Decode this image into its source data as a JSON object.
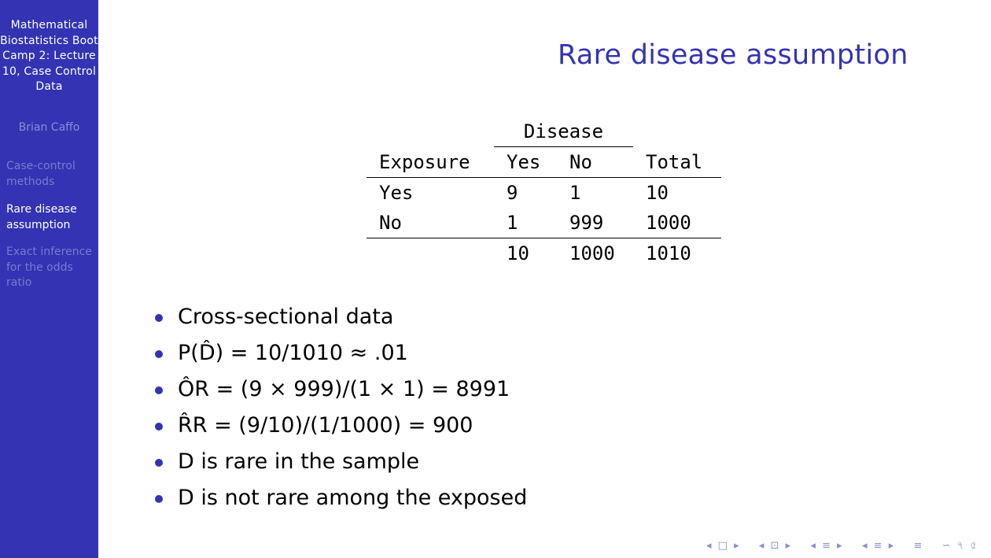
{
  "sidebar": {
    "title": "Mathematical Biostatistics Boot Camp 2: Lecture 10, Case Control Data",
    "author": "Brian Caffo",
    "sections": [
      {
        "label": "Case-control methods",
        "active": false
      },
      {
        "label": "Rare disease assumption",
        "active": true
      },
      {
        "label": "Exact inference for the odds ratio",
        "active": false
      }
    ]
  },
  "slide": {
    "title": "Rare disease assumption"
  },
  "table": {
    "group_header": "Disease",
    "headers": [
      "Exposure",
      "Yes",
      "No",
      "Total"
    ],
    "rows": [
      [
        "Yes",
        "9",
        "1",
        "10"
      ],
      [
        "No",
        "1",
        "999",
        "1000"
      ],
      [
        "",
        "10",
        "1000",
        "1010"
      ]
    ]
  },
  "bullets": [
    "Cross-sectional data",
    "P(D̂) = 10/1010 ≈ .01",
    "ÔR = (9 × 999)/(1 × 1) = 8991",
    "R̂R = (9/10)/(1/1000) = 900",
    "D is rare in the sample",
    "D is not rare among the exposed"
  ],
  "nav": {
    "symbols": [
      "◂",
      "□",
      "▸",
      "◂",
      "⊡",
      "▸",
      "◂",
      "≡",
      "▸",
      "◂",
      "≡",
      "▸",
      "≡",
      "∽",
      "৭",
      "৫"
    ]
  },
  "colors": {
    "sidebar_bg": "#3333b3",
    "accent": "#3333b3",
    "sidebar_dim": "#8c8cd6"
  }
}
